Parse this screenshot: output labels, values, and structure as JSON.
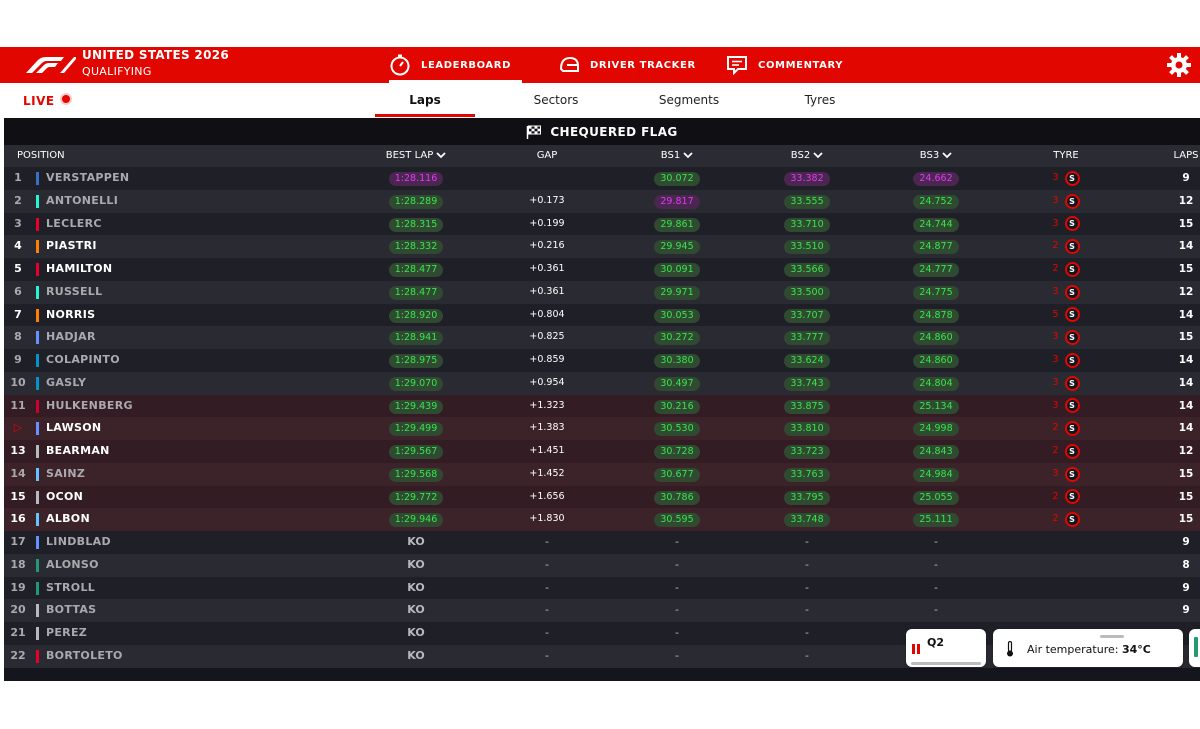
{
  "header": {
    "event_title": "UNITED STATES 2026",
    "session": "QUALIFYING",
    "tabs": [
      {
        "label": "LEADERBOARD",
        "icon": "stopwatch-icon",
        "active": true
      },
      {
        "label": "DRIVER TRACKER",
        "icon": "helmet-icon",
        "active": false
      },
      {
        "label": "COMMENTARY",
        "icon": "chat-icon",
        "active": false
      }
    ],
    "settings_icon": "gear-icon"
  },
  "subbar": {
    "live_label": "LIVE",
    "tabs": [
      {
        "label": "Laps",
        "active": true
      },
      {
        "label": "Sectors",
        "active": false
      },
      {
        "label": "Segments",
        "active": false
      },
      {
        "label": "Tyres",
        "active": false
      }
    ]
  },
  "status": {
    "label": "CHEQUERED FLAG",
    "icon": "chequered-flag-icon"
  },
  "columns": {
    "position": "POSITION",
    "best_lap": "BEST LAP",
    "gap": "GAP",
    "bs1": "BS1",
    "bs2": "BS2",
    "bs3": "BS3",
    "tyre": "TYRE",
    "laps": "LAPS"
  },
  "colors": {
    "accent": "#e10600",
    "fastest": "#e03bf1",
    "personal_best": "#38e54d"
  },
  "rows": [
    {
      "pos": "1",
      "name": "VERSTAPPEN",
      "team_color": "#3671c6",
      "best_lap": "1:28.116",
      "best_lap_color": "purple",
      "gap": "",
      "bs1": "30.072",
      "bs1_color": "green",
      "bs2": "33.382",
      "bs2_color": "purple",
      "bs3": "24.662",
      "bs3_color": "purple",
      "tyre_age": "3",
      "tyre": "S",
      "laps": "9",
      "dim": true,
      "elim": false
    },
    {
      "pos": "2",
      "name": "ANTONELLI",
      "team_color": "#27f4d2",
      "best_lap": "1:28.289",
      "best_lap_color": "green",
      "gap": "+0.173",
      "bs1": "29.817",
      "bs1_color": "purple",
      "bs2": "33.555",
      "bs2_color": "green",
      "bs3": "24.752",
      "bs3_color": "green",
      "tyre_age": "3",
      "tyre": "S",
      "laps": "12",
      "dim": true,
      "elim": false
    },
    {
      "pos": "3",
      "name": "LECLERC",
      "team_color": "#e8002d",
      "best_lap": "1:28.315",
      "best_lap_color": "green",
      "gap": "+0.199",
      "bs1": "29.861",
      "bs1_color": "green",
      "bs2": "33.710",
      "bs2_color": "green",
      "bs3": "24.744",
      "bs3_color": "green",
      "tyre_age": "3",
      "tyre": "S",
      "laps": "15",
      "dim": true,
      "elim": false
    },
    {
      "pos": "4",
      "name": "PIASTRI",
      "team_color": "#ff8000",
      "best_lap": "1:28.332",
      "best_lap_color": "green",
      "gap": "+0.216",
      "bs1": "29.945",
      "bs1_color": "green",
      "bs2": "33.510",
      "bs2_color": "green",
      "bs3": "24.877",
      "bs3_color": "green",
      "tyre_age": "2",
      "tyre": "S",
      "laps": "14",
      "dim": false,
      "elim": false
    },
    {
      "pos": "5",
      "name": "HAMILTON",
      "team_color": "#e8002d",
      "best_lap": "1:28.477",
      "best_lap_color": "green",
      "gap": "+0.361",
      "bs1": "30.091",
      "bs1_color": "green",
      "bs2": "33.566",
      "bs2_color": "green",
      "bs3": "24.777",
      "bs3_color": "green",
      "tyre_age": "2",
      "tyre": "S",
      "laps": "15",
      "dim": false,
      "elim": false
    },
    {
      "pos": "6",
      "name": "RUSSELL",
      "team_color": "#27f4d2",
      "best_lap": "1:28.477",
      "best_lap_color": "green",
      "gap": "+0.361",
      "bs1": "29.971",
      "bs1_color": "green",
      "bs2": "33.500",
      "bs2_color": "green",
      "bs3": "24.775",
      "bs3_color": "green",
      "tyre_age": "3",
      "tyre": "S",
      "laps": "12",
      "dim": true,
      "elim": false
    },
    {
      "pos": "7",
      "name": "NORRIS",
      "team_color": "#ff8000",
      "best_lap": "1:28.920",
      "best_lap_color": "green",
      "gap": "+0.804",
      "bs1": "30.053",
      "bs1_color": "green",
      "bs2": "33.707",
      "bs2_color": "green",
      "bs3": "24.878",
      "bs3_color": "green",
      "tyre_age": "5",
      "tyre": "S",
      "laps": "14",
      "dim": false,
      "elim": false
    },
    {
      "pos": "8",
      "name": "HADJAR",
      "team_color": "#6692ff",
      "best_lap": "1:28.941",
      "best_lap_color": "green",
      "gap": "+0.825",
      "bs1": "30.272",
      "bs1_color": "green",
      "bs2": "33.777",
      "bs2_color": "green",
      "bs3": "24.860",
      "bs3_color": "green",
      "tyre_age": "3",
      "tyre": "S",
      "laps": "15",
      "dim": true,
      "elim": false
    },
    {
      "pos": "9",
      "name": "COLAPINTO",
      "team_color": "#0093cc",
      "best_lap": "1:28.975",
      "best_lap_color": "green",
      "gap": "+0.859",
      "bs1": "30.380",
      "bs1_color": "green",
      "bs2": "33.624",
      "bs2_color": "green",
      "bs3": "24.860",
      "bs3_color": "green",
      "tyre_age": "3",
      "tyre": "S",
      "laps": "14",
      "dim": true,
      "elim": false
    },
    {
      "pos": "10",
      "name": "GASLY",
      "team_color": "#0093cc",
      "best_lap": "1:29.070",
      "best_lap_color": "green",
      "gap": "+0.954",
      "bs1": "30.497",
      "bs1_color": "green",
      "bs2": "33.743",
      "bs2_color": "green",
      "bs3": "24.804",
      "bs3_color": "green",
      "tyre_age": "3",
      "tyre": "S",
      "laps": "14",
      "dim": true,
      "elim": false
    },
    {
      "pos": "11",
      "name": "HULKENBERG",
      "team_color": "#cc0033",
      "best_lap": "1:29.439",
      "best_lap_color": "green",
      "gap": "+1.323",
      "bs1": "30.216",
      "bs1_color": "green",
      "bs2": "33.875",
      "bs2_color": "green",
      "bs3": "25.134",
      "bs3_color": "green",
      "tyre_age": "3",
      "tyre": "S",
      "laps": "14",
      "dim": true,
      "elim": true
    },
    {
      "pos": "▷",
      "name": "LAWSON",
      "team_color": "#6692ff",
      "best_lap": "1:29.499",
      "best_lap_color": "green",
      "gap": "+1.383",
      "bs1": "30.530",
      "bs1_color": "green",
      "bs2": "33.810",
      "bs2_color": "green",
      "bs3": "24.998",
      "bs3_color": "green",
      "tyre_age": "2",
      "tyre": "S",
      "laps": "14",
      "dim": false,
      "elim": true
    },
    {
      "pos": "13",
      "name": "BEARMAN",
      "team_color": "#b6babd",
      "best_lap": "1:29.567",
      "best_lap_color": "green",
      "gap": "+1.451",
      "bs1": "30.728",
      "bs1_color": "green",
      "bs2": "33.723",
      "bs2_color": "green",
      "bs3": "24.843",
      "bs3_color": "green",
      "tyre_age": "2",
      "tyre": "S",
      "laps": "12",
      "dim": false,
      "elim": true
    },
    {
      "pos": "14",
      "name": "SAINZ",
      "team_color": "#64c4ff",
      "best_lap": "1:29.568",
      "best_lap_color": "green",
      "gap": "+1.452",
      "bs1": "30.677",
      "bs1_color": "green",
      "bs2": "33.763",
      "bs2_color": "green",
      "bs3": "24.984",
      "bs3_color": "green",
      "tyre_age": "3",
      "tyre": "S",
      "laps": "15",
      "dim": true,
      "elim": true
    },
    {
      "pos": "15",
      "name": "OCON",
      "team_color": "#b6babd",
      "best_lap": "1:29.772",
      "best_lap_color": "green",
      "gap": "+1.656",
      "bs1": "30.786",
      "bs1_color": "green",
      "bs2": "33.795",
      "bs2_color": "green",
      "bs3": "25.055",
      "bs3_color": "green",
      "tyre_age": "2",
      "tyre": "S",
      "laps": "15",
      "dim": false,
      "elim": true
    },
    {
      "pos": "16",
      "name": "ALBON",
      "team_color": "#64c4ff",
      "best_lap": "1:29.946",
      "best_lap_color": "green",
      "gap": "+1.830",
      "bs1": "30.595",
      "bs1_color": "green",
      "bs2": "33.748",
      "bs2_color": "green",
      "bs3": "25.111",
      "bs3_color": "green",
      "tyre_age": "2",
      "tyre": "S",
      "laps": "15",
      "dim": false,
      "elim": true
    },
    {
      "pos": "17",
      "name": "LINDBLAD",
      "team_color": "#6692ff",
      "best_lap": "KO",
      "gap": "-",
      "bs1": "-",
      "bs2": "-",
      "bs3": "-",
      "tyre_age": "",
      "tyre": "",
      "laps": "9",
      "dim": true,
      "elim": false
    },
    {
      "pos": "18",
      "name": "ALONSO",
      "team_color": "#229971",
      "best_lap": "KO",
      "gap": "-",
      "bs1": "-",
      "bs2": "-",
      "bs3": "-",
      "tyre_age": "",
      "tyre": "",
      "laps": "8",
      "dim": true,
      "elim": false
    },
    {
      "pos": "19",
      "name": "STROLL",
      "team_color": "#229971",
      "best_lap": "KO",
      "gap": "-",
      "bs1": "-",
      "bs2": "-",
      "bs3": "-",
      "tyre_age": "",
      "tyre": "",
      "laps": "9",
      "dim": true,
      "elim": false
    },
    {
      "pos": "20",
      "name": "BOTTAS",
      "team_color": "#b6babd",
      "best_lap": "KO",
      "gap": "-",
      "bs1": "-",
      "bs2": "-",
      "bs3": "-",
      "tyre_age": "",
      "tyre": "",
      "laps": "9",
      "dim": true,
      "elim": false
    },
    {
      "pos": "21",
      "name": "PEREZ",
      "team_color": "#b6babd",
      "best_lap": "KO",
      "gap": "-",
      "bs1": "-",
      "bs2": "-",
      "bs3": "-",
      "tyre_age": "",
      "tyre": "",
      "laps": "",
      "dim": true,
      "elim": false
    },
    {
      "pos": "22",
      "name": "BORTOLETO",
      "team_color": "#e8002d",
      "best_lap": "KO",
      "gap": "-",
      "bs1": "-",
      "bs2": "-",
      "bs3": "-",
      "tyre_age": "",
      "tyre": "",
      "laps": "",
      "dim": true,
      "elim": false
    }
  ],
  "widgets": {
    "segment": {
      "label": "Q2",
      "icon": "pause-bars-icon"
    },
    "weather": {
      "label": "Air temperature:",
      "value": "34°C",
      "icon": "thermometer-icon"
    }
  }
}
